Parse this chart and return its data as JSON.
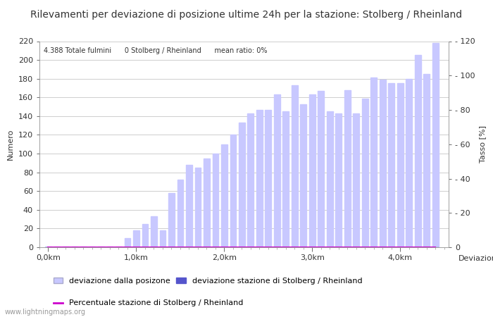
{
  "title": "Rilevamenti per deviazione di posizione ultime 24h per la stazione: Stolberg / Rheinland",
  "subtitle": "4.388 Totale fulmini      0 Stolberg / Rheinland      mean ratio: 0%",
  "xlabel_ticks": [
    "0,0km",
    "1,0km",
    "2,0km",
    "3,0km",
    "4,0km"
  ],
  "xlabel_label": "Deviazioni",
  "ylabel_left": "Numero",
  "ylabel_right": "Tasso [%]",
  "ylim_left": [
    0,
    220
  ],
  "ylim_right": [
    0,
    120
  ],
  "yticks_left": [
    0,
    20,
    40,
    60,
    80,
    100,
    120,
    140,
    160,
    180,
    200,
    220
  ],
  "yticks_right": [
    0,
    20,
    40,
    60,
    80,
    100,
    120
  ],
  "bar_values": [
    1,
    1,
    1,
    1,
    1,
    1,
    1,
    1,
    1,
    10,
    18,
    25,
    33,
    18,
    58,
    72,
    88,
    85,
    95,
    100,
    110,
    120,
    133,
    143,
    147,
    147,
    163,
    145,
    173,
    153,
    163,
    167,
    145,
    143,
    168,
    143,
    159,
    181,
    179,
    175,
    175,
    180,
    205,
    185,
    218
  ],
  "station_bar_values": [
    0,
    0,
    0,
    0,
    0,
    0,
    0,
    0,
    0,
    0,
    0,
    0,
    0,
    0,
    0,
    0,
    0,
    0,
    0,
    0,
    0,
    0,
    0,
    0,
    0,
    0,
    0,
    0,
    0,
    0,
    0,
    0,
    0,
    0,
    0,
    0,
    0,
    0,
    0,
    0,
    0,
    0,
    0,
    0,
    0
  ],
  "percent_values": [
    0,
    0,
    0,
    0,
    0,
    0,
    0,
    0,
    0,
    0,
    0,
    0,
    0,
    0,
    0,
    0,
    0,
    0,
    0,
    0,
    0,
    0,
    0,
    0,
    0,
    0,
    0,
    0,
    0,
    0,
    0,
    0,
    0,
    0,
    0,
    0,
    0,
    0,
    0,
    0,
    0,
    0,
    0,
    0,
    0
  ],
  "bar_color_light": "#c8c8ff",
  "bar_color_dark": "#5555cc",
  "line_color": "#cc00cc",
  "background_color": "#ffffff",
  "grid_color": "#bbbbbb",
  "text_color": "#333333",
  "watermark": "www.lightningmaps.org",
  "legend_label_light": "deviazione dalla posizone",
  "legend_label_dark": "deviazione stazione di Stolberg / Rheinland",
  "legend_label_line": "Percentuale stazione di Stolberg / Rheinland",
  "title_fontsize": 10,
  "axis_fontsize": 8,
  "tick_fontsize": 8
}
